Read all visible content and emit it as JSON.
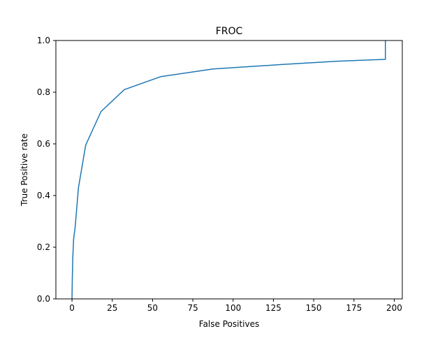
{
  "chart_data": {
    "type": "line",
    "title": "FROC",
    "xlabel": "False Positives",
    "ylabel": "True Positive rate",
    "xlim": [
      -10,
      205
    ],
    "ylim": [
      0.0,
      1.0
    ],
    "xticks": [
      0,
      25,
      50,
      75,
      100,
      125,
      150,
      175,
      200
    ],
    "xtick_labels": [
      "0",
      "25",
      "50",
      "75",
      "100",
      "125",
      "150",
      "175",
      "200"
    ],
    "yticks": [
      0.0,
      0.2,
      0.4,
      0.6,
      0.8,
      1.0
    ],
    "ytick_labels": [
      "0.0",
      "0.2",
      "0.4",
      "0.6",
      "0.8",
      "1.0"
    ],
    "grid": false,
    "series": [
      {
        "color": "#1f77b4",
        "x": [
          0.0,
          0.2,
          0.5,
          1.0,
          2.0,
          4.0,
          8.5,
          18.0,
          32.5,
          55.0,
          87.5,
          130.0,
          165.0,
          194.5,
          194.5
        ],
        "y": [
          0.0,
          0.08,
          0.16,
          0.23,
          0.28,
          0.43,
          0.595,
          0.725,
          0.81,
          0.86,
          0.89,
          0.907,
          0.92,
          0.927,
          1.0
        ]
      }
    ]
  }
}
